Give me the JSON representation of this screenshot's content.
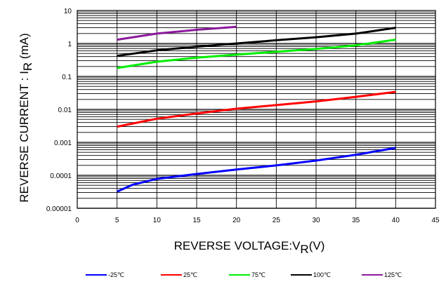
{
  "chart_data": {
    "type": "line",
    "xlabel": {
      "main": "REVERSE VOLTAGE:V",
      "sub": "R",
      "tail": "(V)"
    },
    "ylabel": {
      "main": "REVERSE  CURRENT : I",
      "sub": "R",
      "tail": " (mA)"
    },
    "xlim": [
      0,
      45
    ],
    "ylim": [
      1e-05,
      10
    ],
    "yscale": "log",
    "grid": true,
    "x_ticks": [
      0,
      5,
      10,
      15,
      20,
      25,
      30,
      35,
      40,
      45
    ],
    "x_tick_labels": [
      "0",
      "5",
      "10",
      "15",
      "20",
      "25",
      "30",
      "35",
      "40",
      "45"
    ],
    "y_ticks": [
      1e-05,
      0.0001,
      0.001,
      0.01,
      0.1,
      1,
      10
    ],
    "y_tick_labels": [
      "0.00001",
      "0.0001",
      "0.001",
      "0.01",
      "0.1",
      "1",
      "10"
    ],
    "legend_position": "bottom",
    "series": [
      {
        "name": "-25℃",
        "color": "#0000ff",
        "x": [
          5,
          7,
          10,
          15,
          20,
          25,
          30,
          35,
          40
        ],
        "y": [
          3.2e-05,
          5.2e-05,
          7.8e-05,
          0.00011,
          0.00015,
          0.0002,
          0.00028,
          0.00042,
          0.00068
        ]
      },
      {
        "name": "25℃",
        "color": "#ff0000",
        "x": [
          5,
          10,
          15,
          20,
          25,
          30,
          35,
          40
        ],
        "y": [
          0.003,
          0.0052,
          0.0075,
          0.0105,
          0.0135,
          0.0175,
          0.024,
          0.034
        ]
      },
      {
        "name": "75℃",
        "color": "#00ee00",
        "x": [
          5,
          10,
          15,
          20,
          25,
          30,
          35,
          40
        ],
        "y": [
          0.18,
          0.28,
          0.37,
          0.46,
          0.56,
          0.68,
          0.88,
          1.3
        ]
      },
      {
        "name": "100℃",
        "color": "#000000",
        "x": [
          5,
          10,
          15,
          20,
          25,
          30,
          35,
          40
        ],
        "y": [
          0.42,
          0.62,
          0.8,
          1.0,
          1.25,
          1.55,
          2.0,
          3.0
        ]
      },
      {
        "name": "125℃",
        "color": "#8b1a9b",
        "x": [
          5,
          10,
          15,
          20
        ],
        "y": [
          1.3,
          2.0,
          2.6,
          3.2
        ]
      }
    ]
  }
}
